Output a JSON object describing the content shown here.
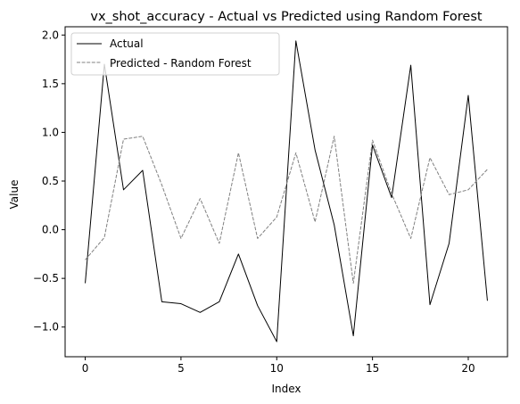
{
  "chart_data": {
    "type": "line",
    "title": "vx_shot_accuracy - Actual vs Predicted using Random Forest",
    "xlabel": "Index",
    "ylabel": "Value",
    "xlim": [
      -1.05,
      22.05
    ],
    "ylim": [
      -1.305,
      2.085
    ],
    "x_ticks": [
      0,
      5,
      10,
      15,
      20
    ],
    "y_ticks": [
      -1.0,
      -0.5,
      0.0,
      0.5,
      1.0,
      1.5,
      2.0
    ],
    "x_tick_labels": [
      "0",
      "5",
      "10",
      "15",
      "20"
    ],
    "y_tick_labels": [
      "−1.0",
      "−0.5",
      "0.0",
      "0.5",
      "1.0",
      "1.5",
      "2.0"
    ],
    "grid": false,
    "legend_position": "upper-left",
    "x": [
      0,
      1,
      2,
      3,
      4,
      5,
      6,
      7,
      8,
      9,
      10,
      11,
      12,
      13,
      14,
      15,
      16,
      17,
      18,
      19,
      20,
      21
    ],
    "series": [
      {
        "name": "Actual",
        "color": "#000000",
        "style": "solid",
        "values": [
          -0.55,
          1.7,
          0.41,
          0.61,
          -0.74,
          -0.76,
          -0.85,
          -0.74,
          -0.25,
          -0.78,
          -1.15,
          1.94,
          0.82,
          0.05,
          -1.09,
          0.87,
          0.33,
          1.69,
          -0.77,
          -0.14,
          1.38,
          -0.73
        ]
      },
      {
        "name": "Predicted - Random Forest",
        "color": "#808080",
        "style": "dashed",
        "values": [
          -0.31,
          -0.08,
          0.93,
          0.96,
          0.46,
          -0.09,
          0.32,
          -0.14,
          0.79,
          -0.09,
          0.13,
          0.79,
          0.08,
          0.96,
          -0.55,
          0.92,
          0.37,
          -0.09,
          0.74,
          0.36,
          0.41,
          0.62
        ]
      }
    ]
  }
}
